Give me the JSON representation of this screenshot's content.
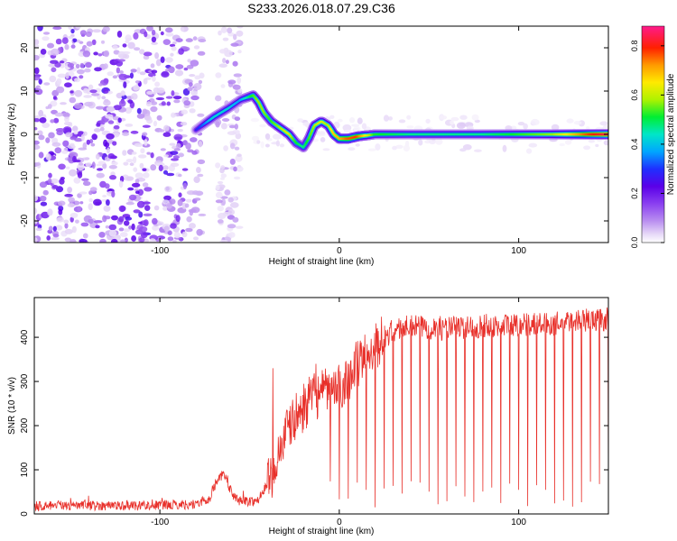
{
  "figure_title": "S233.2026.018.07.29.C36",
  "colors": {
    "snr_line": "#e8302a",
    "axis": "#000000",
    "colormap": [
      "#ffffff",
      "#e6d7f7",
      "#b98ef0",
      "#8a3ff0",
      "#5a00e8",
      "#1f2fff",
      "#00a6ff",
      "#00e6c8",
      "#00ee33",
      "#aef200",
      "#ffea00",
      "#ff9a00",
      "#ff2000",
      "#ff1a8c"
    ]
  },
  "chart_data": [
    {
      "type": "heatmap",
      "name": "spectrogram",
      "title": "S233.2026.018.07.29.C36",
      "xlabel": "Height of straight line (km)",
      "ylabel": "Frequency (Hz)",
      "xlim": [
        -170,
        150
      ],
      "ylim": [
        -25,
        25
      ],
      "xticks": [
        -100,
        0,
        100
      ],
      "xtick_labels": [
        "-100",
        "0",
        "100"
      ],
      "yticks": [
        -20,
        -10,
        0,
        10,
        20
      ],
      "ytick_labels": [
        "-20",
        "-10",
        "0",
        "10",
        "20"
      ],
      "colorbar": {
        "label": "Normalized spectral amplitude",
        "range": [
          0.0,
          0.88
        ],
        "ticks": [
          0.0,
          0.2,
          0.4,
          0.6,
          0.8
        ],
        "tick_labels": [
          "0.0",
          "0.2",
          "0.4",
          "0.6",
          "0.8"
        ]
      },
      "ridge": {
        "x": [
          -80,
          -70,
          -62,
          -55,
          -48,
          -45,
          -42,
          -38,
          -33,
          -28,
          -24,
          -20,
          -17,
          -14,
          -10,
          -6,
          -3,
          0,
          5,
          10,
          20,
          40,
          60,
          80,
          100,
          120,
          140,
          150
        ],
        "freq": [
          1,
          4,
          6,
          8,
          9,
          7.5,
          5,
          3,
          1.5,
          0,
          -2,
          -3,
          -1,
          2,
          3,
          2,
          0,
          -1,
          -1,
          -0.5,
          0,
          0,
          0,
          0,
          0,
          0,
          0,
          0
        ],
        "amplitude": [
          0.3,
          0.45,
          0.45,
          0.4,
          0.55,
          0.6,
          0.6,
          0.55,
          0.6,
          0.65,
          0.55,
          0.5,
          0.55,
          0.6,
          0.65,
          0.6,
          0.7,
          0.72,
          0.78,
          0.8,
          0.55,
          0.5,
          0.5,
          0.5,
          0.55,
          0.6,
          0.8,
          0.85
        ]
      }
    },
    {
      "type": "line",
      "name": "snr",
      "xlabel": "Height of straight line (km)",
      "ylabel": "SNR (10 * v/v)",
      "xlim": [
        -170,
        150
      ],
      "ylim": [
        0,
        490
      ],
      "xticks": [
        -100,
        0,
        100
      ],
      "xtick_labels": [
        "-100",
        "0",
        "100"
      ],
      "yticks": [
        0,
        100,
        200,
        300,
        400
      ],
      "ytick_labels": [
        "0",
        "100",
        "200",
        "300",
        "400"
      ],
      "envelope": {
        "x": [
          -170,
          -100,
          -80,
          -72,
          -68,
          -64,
          -60,
          -55,
          -45,
          -38,
          -33,
          -30,
          -25,
          -20,
          -15,
          -10,
          -5,
          0,
          5,
          10,
          15,
          20,
          25,
          30,
          40,
          60,
          80,
          100,
          120,
          135,
          150
        ],
        "y": [
          18,
          20,
          22,
          35,
          80,
          90,
          45,
          28,
          30,
          85,
          150,
          180,
          215,
          240,
          265,
          270,
          280,
          285,
          310,
          340,
          360,
          380,
          400,
          415,
          425,
          420,
          425,
          430,
          430,
          440,
          440
        ]
      },
      "spike_peaks": [
        {
          "x": -37,
          "y": 330
        },
        {
          "x": -13,
          "y": 340
        },
        {
          "x": -4,
          "y": 310
        }
      ],
      "dropout_spacing_km": 5,
      "dropout_start_km": -5
    }
  ]
}
